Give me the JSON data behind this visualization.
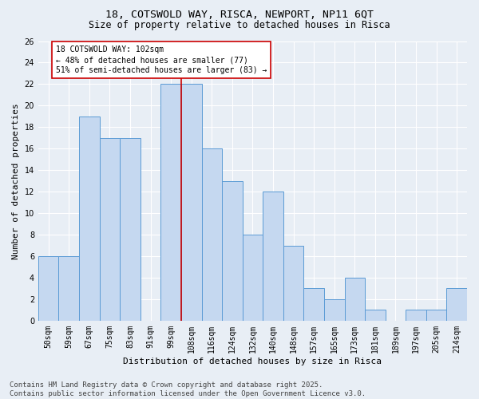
{
  "title": "18, COTSWOLD WAY, RISCA, NEWPORT, NP11 6QT",
  "subtitle": "Size of property relative to detached houses in Risca",
  "xlabel": "Distribution of detached houses by size in Risca",
  "ylabel": "Number of detached properties",
  "categories": [
    "50sqm",
    "59sqm",
    "67sqm",
    "75sqm",
    "83sqm",
    "91sqm",
    "99sqm",
    "108sqm",
    "116sqm",
    "124sqm",
    "132sqm",
    "140sqm",
    "148sqm",
    "157sqm",
    "165sqm",
    "173sqm",
    "181sqm",
    "189sqm",
    "197sqm",
    "205sqm",
    "214sqm"
  ],
  "values": [
    6,
    6,
    19,
    17,
    17,
    0,
    22,
    22,
    16,
    13,
    8,
    12,
    7,
    3,
    2,
    4,
    1,
    0,
    1,
    1,
    3
  ],
  "bar_color": "#c5d8f0",
  "bar_edge_color": "#5b9bd5",
  "vline_index": 7,
  "vline_color": "#cc0000",
  "annotation_text": "18 COTSWOLD WAY: 102sqm\n← 48% of detached houses are smaller (77)\n51% of semi-detached houses are larger (83) →",
  "annotation_box_facecolor": "#ffffff",
  "annotation_box_edgecolor": "#cc0000",
  "ylim": [
    0,
    26
  ],
  "yticks": [
    0,
    2,
    4,
    6,
    8,
    10,
    12,
    14,
    16,
    18,
    20,
    22,
    24,
    26
  ],
  "footer": "Contains HM Land Registry data © Crown copyright and database right 2025.\nContains public sector information licensed under the Open Government Licence v3.0.",
  "bg_color": "#e8eef5",
  "grid_color": "#ffffff",
  "title_fontsize": 9.5,
  "subtitle_fontsize": 8.5,
  "axis_label_fontsize": 8,
  "tick_fontsize": 7,
  "annot_fontsize": 7,
  "footer_fontsize": 6.5
}
